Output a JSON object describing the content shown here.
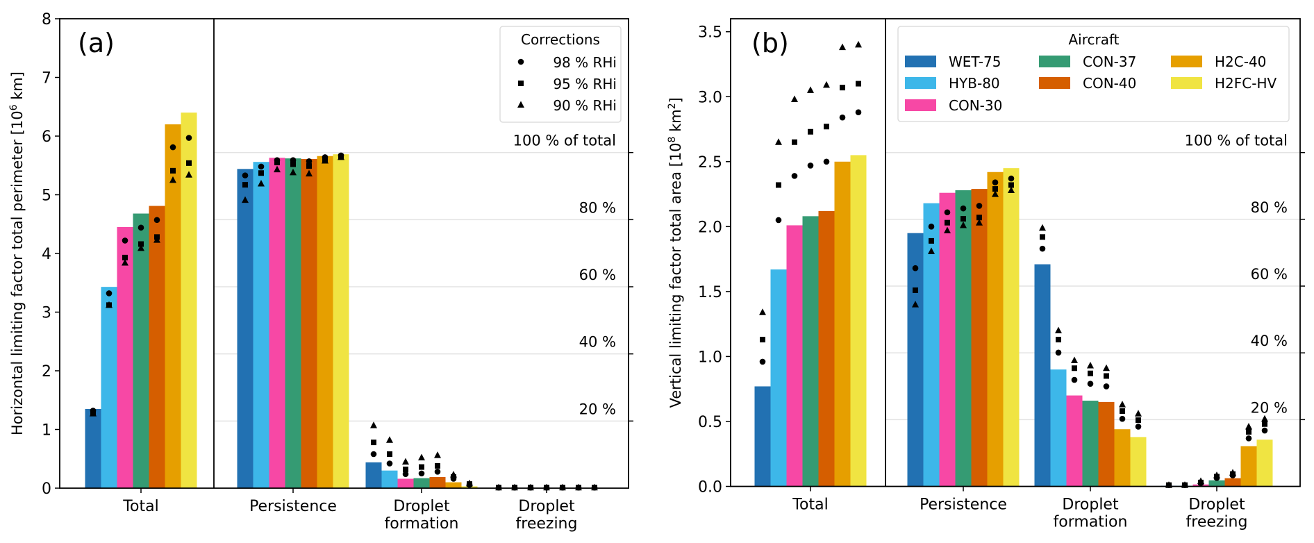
{
  "chart_data": [
    {
      "type": "bar",
      "panel_label": "(a)",
      "ylabel": "Horizontal limiting factor total perimeter [10^6 km]",
      "ylabel_main": "Horizontal limiting factor total perimeter [10",
      "ylabel_sup": "6",
      "ylabel_tail": " km]",
      "ylim": [
        0,
        8
      ],
      "yticks": [
        0,
        1,
        2,
        3,
        4,
        5,
        6,
        7,
        8
      ],
      "ytick_labels": [
        "0",
        "1",
        "2",
        "3",
        "4",
        "5",
        "6",
        "7",
        "8"
      ],
      "categories": [
        "Total",
        "Persistence",
        "Droplet formation",
        "Droplet freezing"
      ],
      "category_lines": [
        [
          "Total"
        ],
        [
          "Persistence"
        ],
        [
          "Droplet",
          "formation"
        ],
        [
          "Droplet",
          "freezing"
        ]
      ],
      "percent_reference_total": 5.72,
      "percent_ticks": [
        20,
        40,
        60,
        80,
        100
      ],
      "percent_labels": [
        "20 %",
        "40 %",
        "60 %",
        "80 %",
        "100 % of total"
      ],
      "series": [
        {
          "name": "WET-75",
          "values": [
            1.35,
            5.44,
            0.44,
            0.005
          ]
        },
        {
          "name": "HYB-80",
          "values": [
            3.43,
            5.56,
            0.3,
            0.005
          ]
        },
        {
          "name": "CON-30",
          "values": [
            4.45,
            5.63,
            0.16,
            0.005
          ]
        },
        {
          "name": "CON-37",
          "values": [
            4.68,
            5.62,
            0.17,
            0.005
          ]
        },
        {
          "name": "CON-40",
          "values": [
            4.81,
            5.61,
            0.19,
            0.005
          ]
        },
        {
          "name": "H2C-40",
          "values": [
            6.2,
            5.66,
            0.1,
            0.005
          ]
        },
        {
          "name": "H2FC-HV",
          "values": [
            6.4,
            5.69,
            0.03,
            0.005
          ]
        }
      ],
      "corrections": {
        "98 % RHi": [
          [
            1.32,
            5.33,
            0.58,
            0.01
          ],
          [
            3.32,
            5.48,
            0.42,
            0.01
          ],
          [
            4.22,
            5.59,
            0.24,
            0.01
          ],
          [
            4.44,
            5.59,
            0.25,
            0.01
          ],
          [
            4.57,
            5.57,
            0.28,
            0.01
          ],
          [
            5.81,
            5.64,
            0.16,
            0.01
          ],
          [
            5.97,
            5.67,
            0.06,
            0.01
          ]
        ],
        "95 % RHi": [
          [
            1.28,
            5.17,
            0.78,
            0.01
          ],
          [
            3.12,
            5.37,
            0.58,
            0.01
          ],
          [
            3.93,
            5.55,
            0.32,
            0.01
          ],
          [
            4.16,
            5.52,
            0.36,
            0.01
          ],
          [
            4.28,
            5.49,
            0.38,
            0.01
          ],
          [
            5.41,
            5.59,
            0.19,
            0.01
          ],
          [
            5.54,
            5.65,
            0.07,
            0.01
          ]
        ],
        "90 % RHi": [
          [
            1.27,
            4.91,
            1.07,
            0.01
          ],
          [
            3.12,
            5.19,
            0.82,
            0.01
          ],
          [
            3.84,
            5.43,
            0.45,
            0.01
          ],
          [
            4.09,
            5.38,
            0.52,
            0.01
          ],
          [
            4.23,
            5.36,
            0.56,
            0.01
          ],
          [
            5.25,
            5.58,
            0.23,
            0.01
          ],
          [
            5.34,
            5.64,
            0.08,
            0.01
          ]
        ]
      },
      "legend": {
        "title": "Corrections",
        "placement": "top-right",
        "entries": [
          {
            "marker": "circle",
            "label": "98 % RHi"
          },
          {
            "marker": "square",
            "label": "95 % RHi"
          },
          {
            "marker": "triangle",
            "label": "90 % RHi"
          }
        ]
      },
      "grid": "horizontal at percent-of-total levels (right section only)"
    },
    {
      "type": "bar",
      "panel_label": "(b)",
      "ylabel": "Vertical limiting factor total area [10^8 km^2]",
      "ylabel_main": "Vertical limiting factor total area [10",
      "ylabel_sup": "8",
      "ylabel_mid": " km",
      "ylabel_sup2": "2",
      "ylabel_tail": "]",
      "ylim": [
        0,
        3.6
      ],
      "yticks": [
        0,
        0.5,
        1.0,
        1.5,
        2.0,
        2.5,
        3.0,
        3.5
      ],
      "ytick_labels": [
        "0.0",
        "0.5",
        "1.0",
        "1.5",
        "2.0",
        "2.5",
        "3.0",
        "3.5"
      ],
      "categories": [
        "Total",
        "Persistence",
        "Droplet formation",
        "Droplet freezing"
      ],
      "category_lines": [
        [
          "Total"
        ],
        [
          "Persistence"
        ],
        [
          "Droplet",
          "formation"
        ],
        [
          "Droplet",
          "freezing"
        ]
      ],
      "percent_reference_total": 2.57,
      "percent_ticks": [
        20,
        40,
        60,
        80,
        100
      ],
      "percent_labels": [
        "20 %",
        "40 %",
        "60 %",
        "80 %",
        "100 % of total"
      ],
      "series": [
        {
          "name": "WET-75",
          "values": [
            0.77,
            1.95,
            1.71,
            0.005
          ]
        },
        {
          "name": "HYB-80",
          "values": [
            1.67,
            2.18,
            0.9,
            0.005
          ]
        },
        {
          "name": "CON-30",
          "values": [
            2.01,
            2.26,
            0.7,
            0.015
          ]
        },
        {
          "name": "CON-37",
          "values": [
            2.08,
            2.28,
            0.66,
            0.047
          ]
        },
        {
          "name": "CON-40",
          "values": [
            2.12,
            2.29,
            0.65,
            0.063
          ]
        },
        {
          "name": "H2C-40",
          "values": [
            2.5,
            2.42,
            0.44,
            0.31
          ]
        },
        {
          "name": "H2FC-HV",
          "values": [
            2.55,
            2.45,
            0.38,
            0.36
          ]
        }
      ],
      "corrections": {
        "98 % RHi": [
          [
            0.96,
            1.68,
            1.83,
            0.01
          ],
          [
            2.05,
            2.0,
            1.03,
            0.01
          ],
          [
            2.39,
            2.11,
            0.82,
            0.025
          ],
          [
            2.47,
            2.14,
            0.79,
            0.065
          ],
          [
            2.5,
            2.16,
            0.77,
            0.085
          ],
          [
            2.84,
            2.34,
            0.52,
            0.37
          ],
          [
            2.88,
            2.37,
            0.46,
            0.43
          ]
        ],
        "95 % RHi": [
          [
            1.13,
            1.51,
            1.92,
            0.01
          ],
          [
            2.32,
            1.89,
            1.13,
            0.01
          ],
          [
            2.65,
            2.03,
            0.91,
            0.03
          ],
          [
            2.73,
            2.06,
            0.87,
            0.075
          ],
          [
            2.77,
            2.07,
            0.85,
            0.095
          ],
          [
            3.07,
            2.29,
            0.58,
            0.42
          ],
          [
            3.1,
            2.32,
            0.51,
            0.48
          ]
        ],
        "90 % RHi": [
          [
            1.34,
            1.4,
            1.99,
            0.01
          ],
          [
            2.65,
            1.81,
            1.2,
            0.01
          ],
          [
            2.98,
            1.97,
            0.97,
            0.04
          ],
          [
            3.05,
            2.01,
            0.93,
            0.085
          ],
          [
            3.09,
            2.03,
            0.91,
            0.105
          ],
          [
            3.38,
            2.25,
            0.63,
            0.46
          ],
          [
            3.4,
            2.28,
            0.56,
            0.52
          ]
        ]
      },
      "legend": {
        "title": "Aircraft",
        "placement": "top-right",
        "entries": [
          {
            "label": "WET-75",
            "color": "#2271b2"
          },
          {
            "label": "HYB-80",
            "color": "#3db7e9"
          },
          {
            "label": "CON-30",
            "color": "#f748a5"
          },
          {
            "label": "CON-37",
            "color": "#359b73"
          },
          {
            "label": "CON-40",
            "color": "#d55e00"
          },
          {
            "label": "H2C-40",
            "color": "#e69f00"
          },
          {
            "label": "H2FC-HV",
            "color": "#f0e442"
          }
        ]
      },
      "grid": "horizontal at percent-of-total levels (right section only)"
    }
  ],
  "colors": {
    "WET-75": "#2271b2",
    "HYB-80": "#3db7e9",
    "CON-30": "#f748a5",
    "CON-37": "#359b73",
    "CON-40": "#d55e00",
    "H2C-40": "#e69f00",
    "H2FC-HV": "#f0e442",
    "marker": "#000000",
    "grid": "#e3e3e3"
  }
}
